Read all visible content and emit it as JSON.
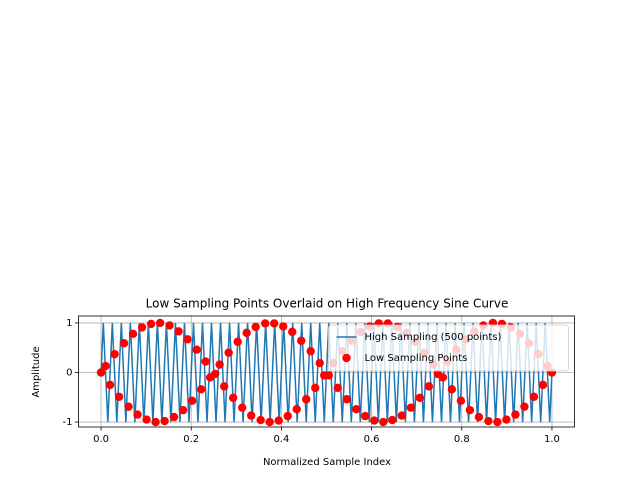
{
  "chart_data": {
    "type": "line_scatter",
    "title": "Low Sampling Points Overlaid on High Frequency Sine Curve",
    "xlabel": "Normalized Sample Index",
    "ylabel": "Amplitude",
    "xlim": [
      -0.05,
      1.05
    ],
    "ylim": [
      -1.1,
      1.14
    ],
    "xticks": [
      {
        "value": 0,
        "label": "0.0"
      },
      0.2,
      0.4,
      0.6,
      0.8,
      {
        "value": 1,
        "label": "1.0"
      }
    ],
    "yticks": [
      -1,
      0,
      1
    ],
    "grid": true,
    "legend": "upper right",
    "series": [
      {
        "name": "High Sampling (500 points)",
        "type": "line",
        "color": "#1f77b4",
        "x": [
          0,
          0.005,
          0.015,
          0.025,
          0.035,
          0.045,
          0.055,
          0.065,
          0.075,
          0.085,
          0.095,
          0.105,
          0.115,
          0.125,
          0.135,
          0.145,
          0.155,
          0.165,
          0.175,
          0.185,
          0.195,
          0.205,
          0.215,
          0.225,
          0.235,
          0.245,
          0.255,
          0.265,
          0.275,
          0.285,
          0.295,
          0.305,
          0.315,
          0.325,
          0.335,
          0.345,
          0.355,
          0.365,
          0.375,
          0.385,
          0.395,
          0.405,
          0.415,
          0.425,
          0.435,
          0.445,
          0.455,
          0.465,
          0.475,
          0.485,
          0.495,
          0.505,
          0.515,
          0.525,
          0.535,
          0.545,
          0.555,
          0.565,
          0.575,
          0.585,
          0.595,
          0.605,
          0.615,
          0.625,
          0.635,
          0.645,
          0.655,
          0.665,
          0.675,
          0.685,
          0.695,
          0.705,
          0.715,
          0.725,
          0.735,
          0.745,
          0.755,
          0.765,
          0.775,
          0.785,
          0.795,
          0.805,
          0.815,
          0.825,
          0.835,
          0.845,
          0.855,
          0.865,
          0.875,
          0.885,
          0.895,
          0.905,
          0.915,
          0.925,
          0.935,
          0.945,
          0.955,
          0.965,
          0.975,
          0.985,
          0.995,
          1
        ],
        "values": [
          0,
          1,
          -1,
          1,
          -1,
          1,
          -1,
          1,
          -1,
          1,
          -1,
          1,
          -1,
          1,
          -1,
          1,
          -1,
          1,
          -1,
          1,
          -1,
          1,
          -1,
          1,
          -1,
          1,
          -1,
          1,
          -1,
          1,
          -1,
          1,
          -1,
          1,
          -1,
          1,
          -1,
          1,
          -1,
          1,
          -1,
          1,
          -1,
          1,
          -1,
          1,
          -1,
          1,
          -1,
          1,
          -1,
          1,
          -1,
          1,
          -1,
          1,
          -1,
          1,
          -1,
          1,
          -1,
          1,
          -1,
          1,
          -1,
          1,
          -1,
          1,
          -1,
          1,
          -1,
          1,
          -1,
          1,
          -1,
          1,
          -1,
          1,
          -1,
          1,
          -1,
          1,
          -1,
          1,
          -1,
          1,
          -1,
          1,
          -1,
          1,
          -1,
          1,
          -1,
          1,
          -1,
          1,
          -1,
          1,
          -1,
          1,
          -1,
          0
        ]
      },
      {
        "name": "Low Sampling Points",
        "type": "scatter",
        "color": "#ff0000",
        "x": [
          0,
          0.01,
          0.02,
          0.03,
          0.04,
          0.051,
          0.061,
          0.071,
          0.081,
          0.091,
          0.101,
          0.111,
          0.121,
          0.131,
          0.141,
          0.152,
          0.162,
          0.172,
          0.182,
          0.192,
          0.202,
          0.212,
          0.222,
          0.232,
          0.242,
          0.253,
          0.263,
          0.273,
          0.283,
          0.293,
          0.303,
          0.313,
          0.323,
          0.333,
          0.343,
          0.354,
          0.364,
          0.374,
          0.384,
          0.394,
          0.404,
          0.414,
          0.424,
          0.434,
          0.444,
          0.455,
          0.465,
          0.475,
          0.485,
          0.495,
          0.505,
          0.515,
          0.525,
          0.535,
          0.545,
          0.556,
          0.566,
          0.576,
          0.586,
          0.596,
          0.606,
          0.616,
          0.626,
          0.636,
          0.646,
          0.657,
          0.667,
          0.677,
          0.687,
          0.697,
          0.707,
          0.717,
          0.727,
          0.737,
          0.747,
          0.758,
          0.768,
          0.778,
          0.788,
          0.798,
          0.808,
          0.818,
          0.828,
          0.838,
          0.848,
          0.859,
          0.869,
          0.879,
          0.889,
          0.899,
          0.909,
          0.919,
          0.929,
          0.939,
          0.949,
          0.96,
          0.97,
          0.98,
          0.99,
          1
        ],
        "values": [
          0,
          0.13,
          -0.25,
          0.37,
          -0.49,
          0.59,
          -0.69,
          0.78,
          -0.85,
          0.91,
          -0.95,
          0.98,
          -1,
          1,
          -0.98,
          0.95,
          -0.9,
          0.83,
          -0.76,
          0.67,
          -0.57,
          0.46,
          -0.34,
          0.22,
          -0.1,
          -0.03,
          0.16,
          -0.28,
          0.4,
          -0.51,
          0.62,
          -0.71,
          0.8,
          -0.87,
          0.92,
          -0.96,
          0.99,
          -1,
          0.99,
          -0.97,
          0.93,
          -0.88,
          0.82,
          -0.74,
          0.64,
          -0.54,
          0.43,
          -0.31,
          0.19,
          -0.06,
          -0.06,
          0.19,
          -0.31,
          0.43,
          -0.54,
          0.64,
          -0.74,
          0.82,
          -0.88,
          0.93,
          -0.97,
          0.99,
          -1,
          0.99,
          -0.96,
          0.92,
          -0.87,
          0.8,
          -0.71,
          0.62,
          -0.51,
          0.4,
          -0.28,
          0.16,
          -0.03,
          -0.1,
          0.22,
          -0.34,
          0.46,
          -0.57,
          0.67,
          -0.76,
          0.83,
          -0.9,
          0.95,
          -0.98,
          1,
          -1,
          0.98,
          -0.95,
          0.91,
          -0.85,
          0.78,
          -0.69,
          0.59,
          -0.49,
          0.37,
          -0.25,
          0.13,
          0
        ]
      }
    ]
  }
}
